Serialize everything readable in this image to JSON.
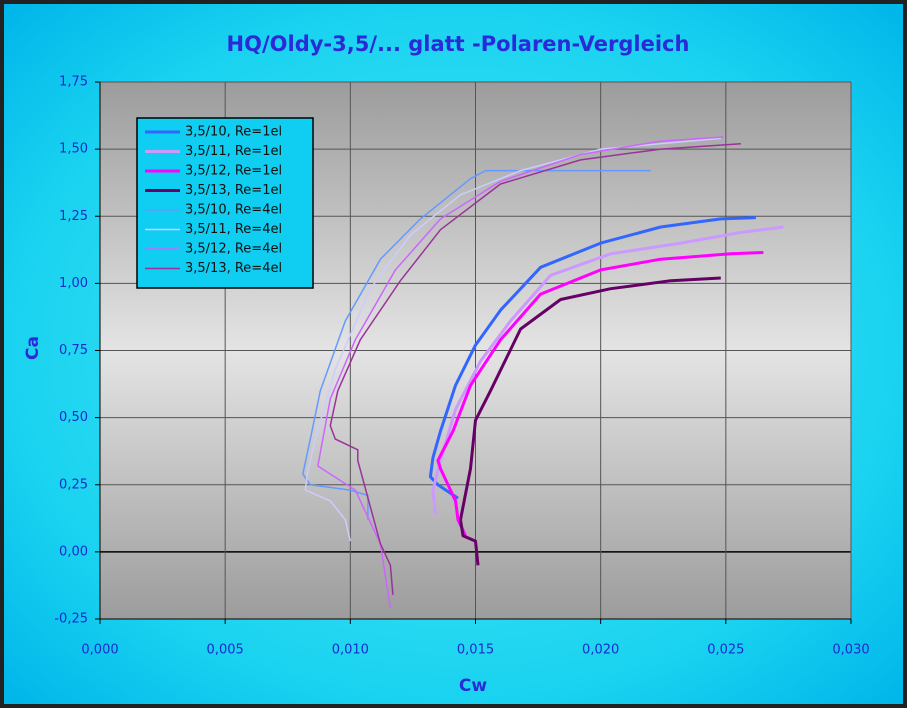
{
  "chart_data": {
    "type": "line",
    "title": "HQ/Oldy-3,5/... glatt -Polaren-Vergleich",
    "x_label": "Cw",
    "y_label": "Ca",
    "xlim": [
      0,
      0.03
    ],
    "ylim": [
      -0.25,
      1.75
    ],
    "xticks": [
      {
        "value": 0,
        "label": "0,000"
      },
      {
        "value": 0.005,
        "label": "0,005"
      },
      {
        "value": 0.01,
        "label": "0,010"
      },
      {
        "value": 0.015,
        "label": "0,015"
      },
      {
        "value": 0.02,
        "label": "0,020"
      },
      {
        "value": 0.025,
        "label": "0,025"
      },
      {
        "value": 0.03,
        "label": "0,030"
      }
    ],
    "yticks": [
      {
        "value": -0.25,
        "label": "-0,25"
      },
      {
        "value": 0,
        "label": "0,00"
      },
      {
        "value": 0.25,
        "label": "0,25"
      },
      {
        "value": 0.5,
        "label": "0,50"
      },
      {
        "value": 0.75,
        "label": "0,75"
      },
      {
        "value": 1,
        "label": "1,00"
      },
      {
        "value": 1.25,
        "label": "1,25"
      },
      {
        "value": 1.5,
        "label": "1,50"
      },
      {
        "value": 1.75,
        "label": "1,75"
      }
    ],
    "grid": true,
    "legend": "top-left",
    "series": [
      {
        "name": "3,5/10, Re=1el",
        "color": "#3366ff",
        "line_width": 3,
        "x": [
          0.0143,
          0.0135,
          0.0132,
          0.0133,
          0.0136,
          0.0142,
          0.015,
          0.016,
          0.0176,
          0.02,
          0.0224,
          0.0248,
          0.0262
        ],
        "values": [
          0.2,
          0.25,
          0.28,
          0.35,
          0.45,
          0.62,
          0.77,
          0.9,
          1.06,
          1.15,
          1.21,
          1.24,
          1.245
        ]
      },
      {
        "name": "3,5/11, Re=1el",
        "color": "#cc99ff",
        "line_width": 3,
        "x": [
          0.0134,
          0.0133,
          0.0136,
          0.0142,
          0.0152,
          0.0164,
          0.018,
          0.0204,
          0.0232,
          0.0256,
          0.0273
        ],
        "values": [
          0.14,
          0.23,
          0.34,
          0.53,
          0.71,
          0.86,
          1.03,
          1.11,
          1.15,
          1.19,
          1.21
        ]
      },
      {
        "name": "3,5/12, Re=1el",
        "color": "#ff00ff",
        "line_width": 3,
        "x": [
          0.0146,
          0.0143,
          0.0142,
          0.0136,
          0.0135,
          0.0141,
          0.0148,
          0.016,
          0.0176,
          0.02,
          0.0224,
          0.0252,
          0.0265
        ],
        "values": [
          0.06,
          0.12,
          0.19,
          0.31,
          0.34,
          0.45,
          0.62,
          0.79,
          0.96,
          1.05,
          1.09,
          1.11,
          1.115
        ]
      },
      {
        "name": "3,5/13, Re=1el",
        "color": "#660066",
        "line_width": 3,
        "x": [
          0.0151,
          0.015,
          0.0145,
          0.0144,
          0.0148,
          0.015,
          0.0156,
          0.0168,
          0.0184,
          0.0204,
          0.0228,
          0.0248
        ],
        "values": [
          -0.05,
          0.04,
          0.06,
          0.12,
          0.31,
          0.49,
          0.6,
          0.83,
          0.94,
          0.98,
          1.01,
          1.02
        ]
      },
      {
        "name": "3,5/10, Re=4el",
        "color": "#6699ff",
        "line_width": 1.5,
        "x": [
          0.0107,
          0.0107,
          0.01,
          0.0084,
          0.0081,
          0.0084,
          0.0088,
          0.0098,
          0.0112,
          0.0128,
          0.0148,
          0.0154,
          0.022
        ],
        "values": [
          0.12,
          0.21,
          0.23,
          0.25,
          0.29,
          0.42,
          0.6,
          0.86,
          1.09,
          1.24,
          1.39,
          1.42,
          1.42
        ]
      },
      {
        "name": "3,5/11, Re=4el",
        "color": "#ccccff",
        "line_width": 1.5,
        "x": [
          0.01,
          0.0098,
          0.0092,
          0.0082,
          0.0083,
          0.0086,
          0.0094,
          0.0108,
          0.0124,
          0.0144,
          0.0168,
          0.02,
          0.0248
        ],
        "values": [
          0.04,
          0.12,
          0.19,
          0.23,
          0.3,
          0.42,
          0.68,
          0.98,
          1.18,
          1.33,
          1.42,
          1.5,
          1.54
        ]
      },
      {
        "name": "3,5/12, Re=4el",
        "color": "#cc66ff",
        "line_width": 1.5,
        "x": [
          0.0116,
          0.0114,
          0.0112,
          0.0102,
          0.0087,
          0.0089,
          0.0092,
          0.0102,
          0.0118,
          0.0136,
          0.016,
          0.0192,
          0.0224,
          0.0249
        ],
        "values": [
          -0.21,
          -0.09,
          0.03,
          0.23,
          0.32,
          0.42,
          0.57,
          0.79,
          1.05,
          1.24,
          1.38,
          1.48,
          1.53,
          1.545
        ]
      },
      {
        "name": "3,5/13, Re=4el",
        "color": "#993399",
        "line_width": 1.5,
        "x": [
          0.0117,
          0.0116,
          0.0112,
          0.0103,
          0.0103,
          0.0094,
          0.0092,
          0.0095,
          0.0104,
          0.012,
          0.0136,
          0.016,
          0.0192,
          0.0224,
          0.0256
        ],
        "values": [
          -0.16,
          -0.05,
          0.03,
          0.34,
          0.38,
          0.42,
          0.47,
          0.6,
          0.79,
          1.01,
          1.2,
          1.37,
          1.46,
          1.5,
          1.52
        ]
      }
    ]
  }
}
